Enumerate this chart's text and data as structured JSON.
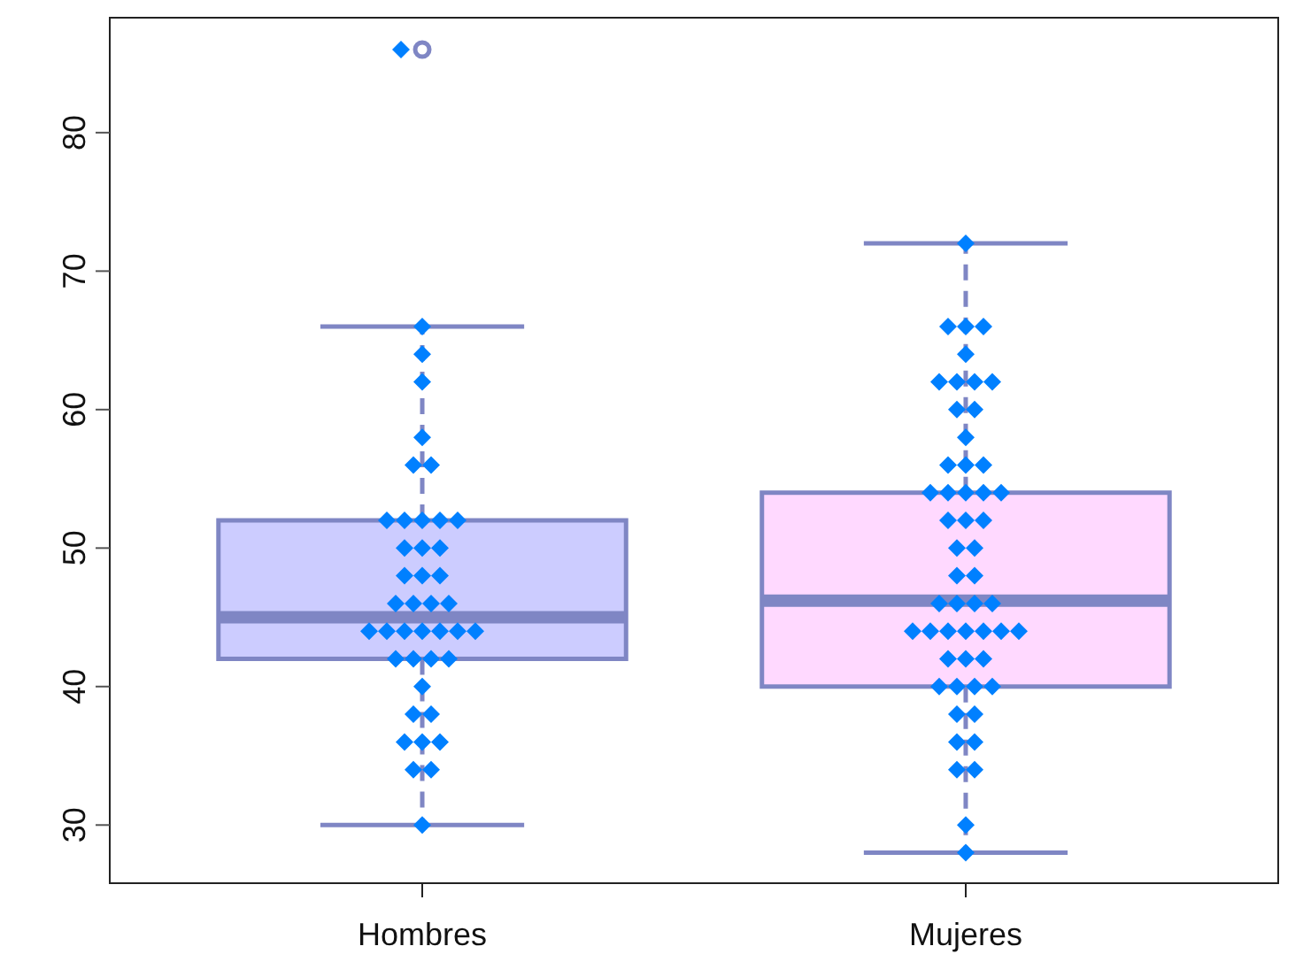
{
  "chart_data": {
    "type": "box",
    "categories": [
      "Hombres",
      "Mujeres"
    ],
    "boxes": [
      {
        "low": 30,
        "q1": 42,
        "median": 45,
        "q3": 52,
        "high": 66,
        "outliers": [
          86
        ]
      },
      {
        "low": 28,
        "q1": 40,
        "median": 46.2,
        "q3": 54,
        "high": 72
      }
    ],
    "colors": [
      "#ccccff",
      "#ffd9ff"
    ],
    "ylim": [
      25.8,
      88.3
    ],
    "yticks": [
      30,
      40,
      50,
      60,
      70,
      80
    ],
    "series": [
      {
        "type": "scatter",
        "color": "#0080ff",
        "marker": "diamond",
        "x": [
          "Hombres",
          "Hombres",
          "Hombres",
          "Hombres",
          "Hombres",
          "Hombres",
          "Hombres",
          "Hombres",
          "Hombres",
          "Hombres",
          "Hombres",
          "Hombres",
          "Hombres",
          "Hombres",
          "Hombres",
          "Hombres",
          "Hombres",
          "Hombres",
          "Hombres",
          "Hombres",
          "Hombres",
          "Hombres",
          "Hombres",
          "Hombres",
          "Hombres",
          "Hombres",
          "Hombres",
          "Hombres",
          "Hombres",
          "Hombres",
          "Hombres",
          "Hombres",
          "Hombres",
          "Hombres",
          "Hombres",
          "Hombres",
          "Hombres",
          "Hombres",
          "Hombres",
          "Hombres",
          "Hombres",
          "Hombres"
        ],
        "values": [
          86,
          66,
          64,
          62,
          58,
          56,
          56,
          52,
          52,
          52,
          52,
          50,
          50,
          50,
          48,
          48,
          48,
          46,
          46,
          46,
          46,
          44,
          44,
          44,
          44,
          44,
          44,
          44,
          42,
          42,
          42,
          42,
          40,
          38,
          38,
          36,
          36,
          36,
          34,
          34,
          30,
          52
        ]
      },
      {
        "type": "scatter",
        "color": "#0080ff",
        "marker": "diamond",
        "x": [
          "Mujeres",
          "Mujeres",
          "Mujeres",
          "Mujeres",
          "Mujeres",
          "Mujeres",
          "Mujeres",
          "Mujeres",
          "Mujeres",
          "Mujeres",
          "Mujeres",
          "Mujeres",
          "Mujeres",
          "Mujeres",
          "Mujeres",
          "Mujeres",
          "Mujeres",
          "Mujeres",
          "Mujeres",
          "Mujeres",
          "Mujeres",
          "Mujeres",
          "Mujeres",
          "Mujeres",
          "Mujeres",
          "Mujeres",
          "Mujeres",
          "Mujeres",
          "Mujeres",
          "Mujeres",
          "Mujeres",
          "Mujeres",
          "Mujeres",
          "Mujeres",
          "Mujeres",
          "Mujeres",
          "Mujeres",
          "Mujeres",
          "Mujeres",
          "Mujeres",
          "Mujeres",
          "Mujeres",
          "Mujeres",
          "Mujeres",
          "Mujeres",
          "Mujeres",
          "Mujeres",
          "Mujeres",
          "Mujeres",
          "Mujeres",
          "Mujeres",
          "Mujeres",
          "Mujeres"
        ],
        "values": [
          72,
          66,
          66,
          66,
          64,
          62,
          62,
          62,
          62,
          60,
          58,
          56,
          56,
          56,
          54,
          54,
          54,
          54,
          54,
          52,
          52,
          50,
          50,
          48,
          48,
          46,
          46,
          46,
          46,
          44,
          44,
          44,
          44,
          44,
          44,
          42,
          42,
          42,
          40,
          40,
          40,
          40,
          38,
          38,
          36,
          36,
          34,
          34,
          30,
          28,
          60,
          52,
          44
        ]
      }
    ]
  }
}
